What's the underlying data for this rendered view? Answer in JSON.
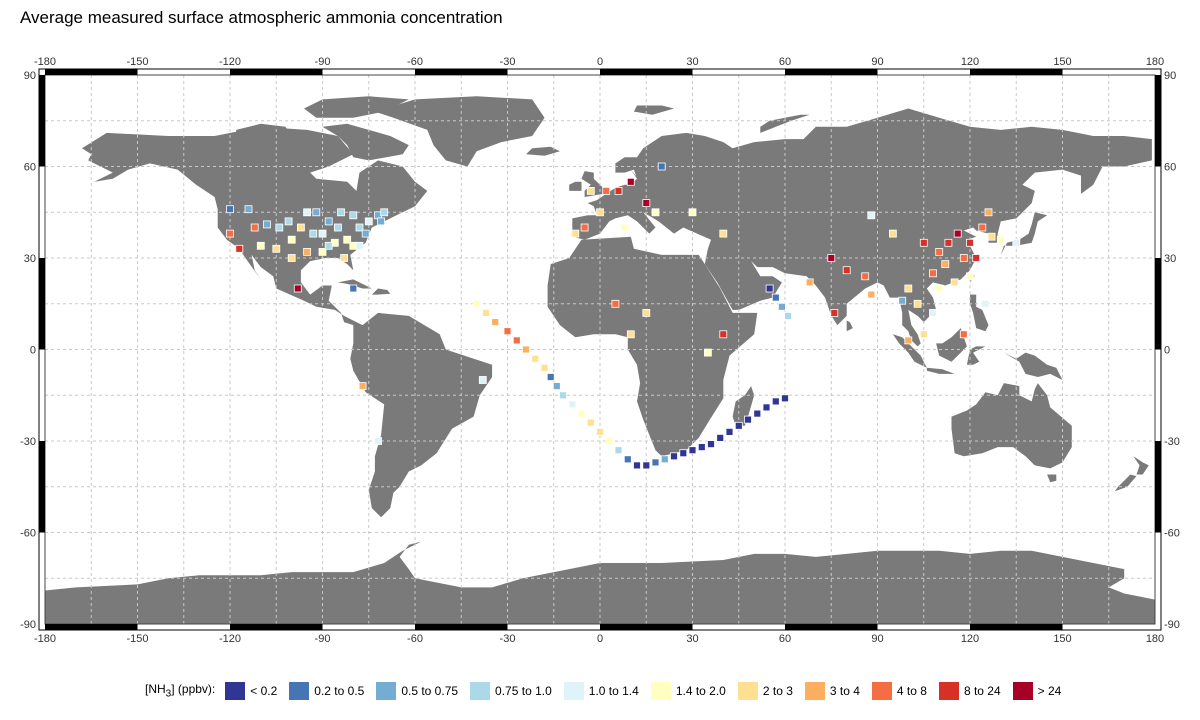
{
  "title": "Average measured surface atmospheric ammonia concentration",
  "chart_data": {
    "type": "map",
    "projection": "equirectangular",
    "lon_range": [
      -180,
      180
    ],
    "lat_range": [
      -90,
      90
    ],
    "lon_ticks": [
      "-180",
      "-150",
      "-120",
      "-90",
      "-60",
      "-30",
      "0",
      "30",
      "60",
      "90",
      "120",
      "150",
      "180"
    ],
    "lat_ticks": [
      "90",
      "60",
      "30",
      "0",
      "-30",
      "-60",
      "-90"
    ],
    "grid": true,
    "land_color": "#7a7a7a",
    "legend": {
      "title_prefix": "[NH",
      "title_sub": "3",
      "title_suffix": "] (ppbv):",
      "placement": "bottom",
      "classes": [
        {
          "label": "< 0.2",
          "color": "#313695"
        },
        {
          "label": "0.2 to 0.5",
          "color": "#4575b4"
        },
        {
          "label": "0.5 to 0.75",
          "color": "#74add1"
        },
        {
          "label": "0.75 to 1.0",
          "color": "#abd9e9"
        },
        {
          "label": "1.0 to 1.4",
          "color": "#e0f3f8"
        },
        {
          "label": "1.4 to 2.0",
          "color": "#ffffbf"
        },
        {
          "label": "2 to 3",
          "color": "#fee090"
        },
        {
          "label": "3 to 4",
          "color": "#fdae61"
        },
        {
          "label": "4 to 8",
          "color": "#f46d43"
        },
        {
          "label": "8 to 24",
          "color": "#d73027"
        },
        {
          "label": "> 24",
          "color": "#a50026"
        }
      ]
    },
    "stations": [
      [
        -117,
        33,
        9
      ],
      [
        -112,
        40,
        8
      ],
      [
        -108,
        41,
        2
      ],
      [
        -104,
        40,
        3
      ],
      [
        -100,
        36,
        5
      ],
      [
        -97,
        40,
        6
      ],
      [
        -95,
        32,
        7
      ],
      [
        -90,
        38,
        4
      ],
      [
        -85,
        40,
        3
      ],
      [
        -82,
        36,
        5
      ],
      [
        -78,
        40,
        3
      ],
      [
        -75,
        42,
        4
      ],
      [
        -72,
        44,
        2
      ],
      [
        -70,
        45,
        3
      ],
      [
        -88,
        42,
        2
      ],
      [
        -92,
        45,
        2
      ],
      [
        -80,
        34,
        5
      ],
      [
        -84,
        45,
        3
      ],
      [
        -95,
        45,
        4
      ],
      [
        -100,
        30,
        6
      ],
      [
        -98,
        20,
        10
      ],
      [
        -110,
        34,
        5
      ],
      [
        -120,
        38,
        8
      ],
      [
        -105,
        33,
        6
      ],
      [
        -90,
        32,
        5
      ],
      [
        -83,
        30,
        6
      ],
      [
        -78,
        34,
        4
      ],
      [
        -101,
        42,
        3
      ],
      [
        -86,
        35,
        5
      ],
      [
        -93,
        38,
        3
      ],
      [
        -88,
        34,
        3
      ],
      [
        -76,
        38,
        2
      ],
      [
        -71,
        42,
        2
      ],
      [
        -80,
        44,
        3
      ],
      [
        -120,
        46,
        1
      ],
      [
        -114,
        46,
        2
      ],
      [
        -80,
        20,
        1
      ],
      [
        -77,
        -12,
        7
      ],
      [
        -72,
        -30,
        4
      ],
      [
        -38,
        -10,
        4
      ],
      [
        -3,
        52,
        6
      ],
      [
        2,
        52,
        8
      ],
      [
        6,
        52,
        9
      ],
      [
        10,
        55,
        10
      ],
      [
        20,
        60,
        1
      ],
      [
        15,
        48,
        10
      ],
      [
        18,
        45,
        5
      ],
      [
        0,
        45,
        6
      ],
      [
        -5,
        40,
        8
      ],
      [
        -8,
        38,
        6
      ],
      [
        8,
        40,
        5
      ],
      [
        30,
        45,
        5
      ],
      [
        40,
        38,
        6
      ],
      [
        5,
        15,
        8
      ],
      [
        15,
        12,
        6
      ],
      [
        10,
        5,
        6
      ],
      [
        35,
        -1,
        5
      ],
      [
        40,
        5,
        9
      ],
      [
        -40,
        15,
        5
      ],
      [
        -37,
        12,
        6
      ],
      [
        -34,
        9,
        7
      ],
      [
        -30,
        6,
        8
      ],
      [
        -27,
        3,
        8
      ],
      [
        -24,
        0,
        7
      ],
      [
        -21,
        -3,
        6
      ],
      [
        -18,
        -6,
        6
      ],
      [
        -16,
        -9,
        1
      ],
      [
        -14,
        -12,
        2
      ],
      [
        -12,
        -15,
        3
      ],
      [
        -9,
        -18,
        4
      ],
      [
        -6,
        -21,
        5
      ],
      [
        -3,
        -24,
        6
      ],
      [
        0,
        -27,
        6
      ],
      [
        3,
        -30,
        5
      ],
      [
        6,
        -33,
        3
      ],
      [
        9,
        -36,
        1
      ],
      [
        12,
        -38,
        0
      ],
      [
        15,
        -38,
        0
      ],
      [
        18,
        -37,
        1
      ],
      [
        21,
        -36,
        2
      ],
      [
        24,
        -35,
        0
      ],
      [
        27,
        -34,
        0
      ],
      [
        30,
        -33,
        0
      ],
      [
        33,
        -32,
        0
      ],
      [
        36,
        -31,
        0
      ],
      [
        39,
        -29,
        0
      ],
      [
        42,
        -27,
        0
      ],
      [
        45,
        -25,
        0
      ],
      [
        48,
        -23,
        0
      ],
      [
        51,
        -21,
        0
      ],
      [
        54,
        -19,
        0
      ],
      [
        57,
        -17,
        0
      ],
      [
        60,
        -16,
        0
      ],
      [
        55,
        20,
        0
      ],
      [
        57,
        17,
        1
      ],
      [
        59,
        14,
        2
      ],
      [
        61,
        11,
        3
      ],
      [
        75,
        30,
        10
      ],
      [
        80,
        26,
        9
      ],
      [
        86,
        24,
        8
      ],
      [
        88,
        18,
        7
      ],
      [
        76,
        12,
        9
      ],
      [
        100,
        20,
        6
      ],
      [
        103,
        15,
        6
      ],
      [
        105,
        35,
        9
      ],
      [
        110,
        32,
        8
      ],
      [
        113,
        35,
        9
      ],
      [
        116,
        38,
        10
      ],
      [
        120,
        35,
        9
      ],
      [
        124,
        40,
        8
      ],
      [
        127,
        37,
        6
      ],
      [
        130,
        36,
        5
      ],
      [
        135,
        35,
        4
      ],
      [
        118,
        30,
        8
      ],
      [
        112,
        28,
        7
      ],
      [
        108,
        25,
        8
      ],
      [
        115,
        22,
        6
      ],
      [
        120,
        24,
        5
      ],
      [
        122,
        30,
        9
      ],
      [
        126,
        45,
        7
      ],
      [
        95,
        38,
        6
      ],
      [
        88,
        44,
        4
      ],
      [
        110,
        20,
        5
      ],
      [
        108,
        12,
        4
      ],
      [
        105,
        5,
        6
      ],
      [
        100,
        3,
        7
      ],
      [
        118,
        5,
        8
      ],
      [
        125,
        15,
        4
      ],
      [
        98,
        16,
        2
      ],
      [
        68,
        22,
        7
      ]
    ]
  }
}
